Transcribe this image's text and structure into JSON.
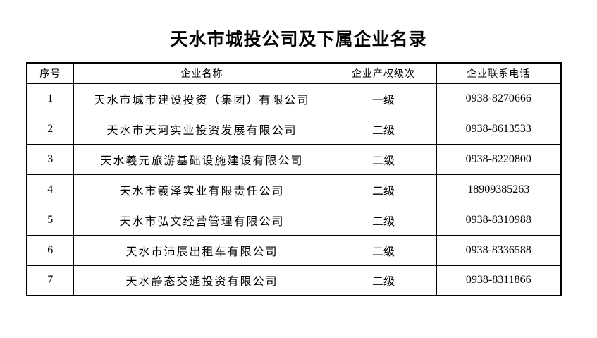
{
  "page": {
    "title": "天水市城投公司及下属企业名录"
  },
  "colors": {
    "text": "#000000",
    "border": "#000000",
    "background": "#ffffff"
  },
  "table": {
    "columns": [
      {
        "key": "no",
        "label": "序号"
      },
      {
        "key": "name",
        "label": "企业名称"
      },
      {
        "key": "level",
        "label": "企业产权级次"
      },
      {
        "key": "phone",
        "label": "企业联系电话"
      }
    ],
    "rows": [
      {
        "no": "1",
        "name": "天水市城市建设投资（集团）有限公司",
        "level": "一级",
        "phone": "0938-8270666"
      },
      {
        "no": "2",
        "name": "天水市天河实业投资发展有限公司",
        "level": "二级",
        "phone": "0938-8613533"
      },
      {
        "no": "3",
        "name": "天水羲元旅游基础设施建设有限公司",
        "level": "二级",
        "phone": "0938-8220800"
      },
      {
        "no": "4",
        "name": "天水市羲泽实业有限责任公司",
        "level": "二级",
        "phone": "18909385263"
      },
      {
        "no": "5",
        "name": "天水市弘文经营管理有限公司",
        "level": "二级",
        "phone": "0938-8310988"
      },
      {
        "no": "6",
        "name": "天水市沛辰出租车有限公司",
        "level": "二级",
        "phone": "0938-8336588"
      },
      {
        "no": "7",
        "name": "天水静态交通投资有限公司",
        "level": "二级",
        "phone": "0938-8311866"
      }
    ]
  }
}
